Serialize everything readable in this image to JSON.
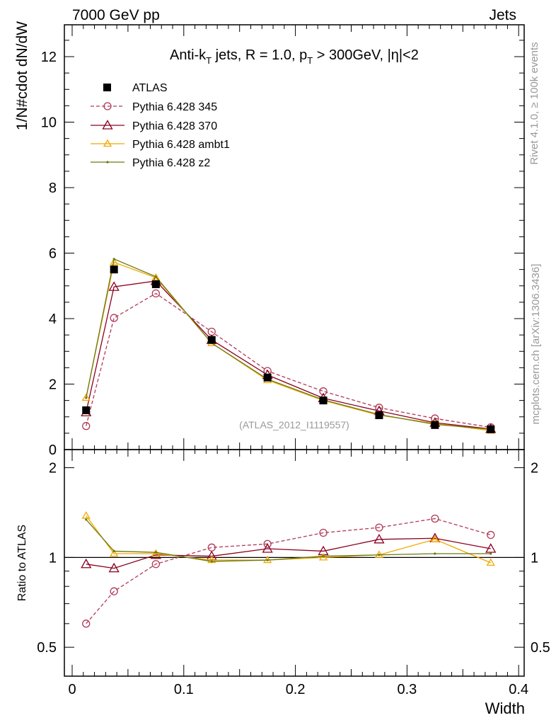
{
  "header": {
    "left": "7000 GeV pp",
    "right": "Jets"
  },
  "plot_title": "Anti-k_T jets, R = 1.0, p_T > 300GeV, |η|<2",
  "side_labels": {
    "rivet": "Rivet 4.1.0, ≥ 100k events",
    "mcplots": "mcplots.cern.ch [arXiv:1306.3436]"
  },
  "analysis_id": "(ATLAS_2012_I1119557)",
  "colors": {
    "atlas": "#000000",
    "py345": "#b03a58",
    "py370": "#8b0020",
    "ambt1": "#f0a800",
    "z2": "#6b7a10"
  },
  "chart_data": [
    {
      "type": "line",
      "panel": "main",
      "ylabel": "1/N#cdot dN/dW",
      "xlabel": "",
      "xlim": [
        0,
        0.4
      ],
      "ylim": [
        0,
        13
      ],
      "yticks": [
        0,
        2,
        4,
        6,
        8,
        10,
        12
      ],
      "ytick_labels": [
        "0",
        "2",
        "4",
        "6",
        "8",
        "10",
        "12"
      ],
      "x": [
        0.0125,
        0.0375,
        0.075,
        0.125,
        0.175,
        0.225,
        0.275,
        0.325,
        0.375
      ],
      "series": [
        {
          "name": "ATLAS",
          "key": "atlas",
          "values": [
            1.2,
            5.5,
            5.05,
            3.35,
            2.2,
            1.5,
            1.05,
            0.75,
            0.62
          ]
        },
        {
          "name": "Pythia 6.428 345",
          "key": "py345",
          "values": [
            0.72,
            4.02,
            4.77,
            3.6,
            2.4,
            1.78,
            1.28,
            0.95,
            0.68
          ]
        },
        {
          "name": "Pythia 6.428 370",
          "key": "py370",
          "values": [
            1.14,
            4.97,
            5.15,
            3.35,
            2.28,
            1.57,
            1.18,
            0.82,
            0.63
          ]
        },
        {
          "name": "Pythia 6.428 ambt1",
          "key": "ambt1",
          "values": [
            1.58,
            5.72,
            5.25,
            3.25,
            2.12,
            1.5,
            1.05,
            0.8,
            0.58
          ]
        },
        {
          "name": "Pythia 6.428 z2",
          "key": "z2",
          "values": [
            1.58,
            5.82,
            5.28,
            3.25,
            2.15,
            1.52,
            1.07,
            0.77,
            0.62
          ]
        }
      ]
    },
    {
      "type": "line",
      "panel": "ratio",
      "ylabel": "Ratio to ATLAS",
      "xlabel": "Width",
      "xlim": [
        0,
        0.4
      ],
      "ylim": [
        0.4,
        2.3
      ],
      "yscale": "log",
      "yticks": [
        0.5,
        1,
        2
      ],
      "ytick_labels": [
        "0.5",
        "1",
        "2"
      ],
      "xticks": [
        0,
        0.1,
        0.2,
        0.3,
        0.4
      ],
      "xtick_labels": [
        "0",
        "0.1",
        "0.2",
        "0.3",
        "0.4"
      ],
      "x": [
        0.0125,
        0.0375,
        0.075,
        0.125,
        0.175,
        0.225,
        0.275,
        0.325,
        0.375
      ],
      "series": [
        {
          "name": "Pythia 6.428 345",
          "key": "py345",
          "values": [
            0.6,
            0.77,
            0.95,
            1.08,
            1.11,
            1.21,
            1.26,
            1.35,
            1.19
          ]
        },
        {
          "name": "Pythia 6.428 370",
          "key": "py370",
          "values": [
            0.95,
            0.92,
            1.02,
            1.01,
            1.07,
            1.05,
            1.15,
            1.16,
            1.07
          ]
        },
        {
          "name": "Pythia 6.428 ambt1",
          "key": "ambt1",
          "values": [
            1.38,
            1.03,
            1.03,
            0.98,
            0.98,
            1.0,
            1.02,
            1.15,
            0.96
          ]
        },
        {
          "name": "Pythia 6.428 z2",
          "key": "z2",
          "values": [
            1.34,
            1.05,
            1.04,
            0.97,
            0.98,
            1.01,
            1.02,
            1.03,
            1.03
          ]
        }
      ]
    }
  ]
}
